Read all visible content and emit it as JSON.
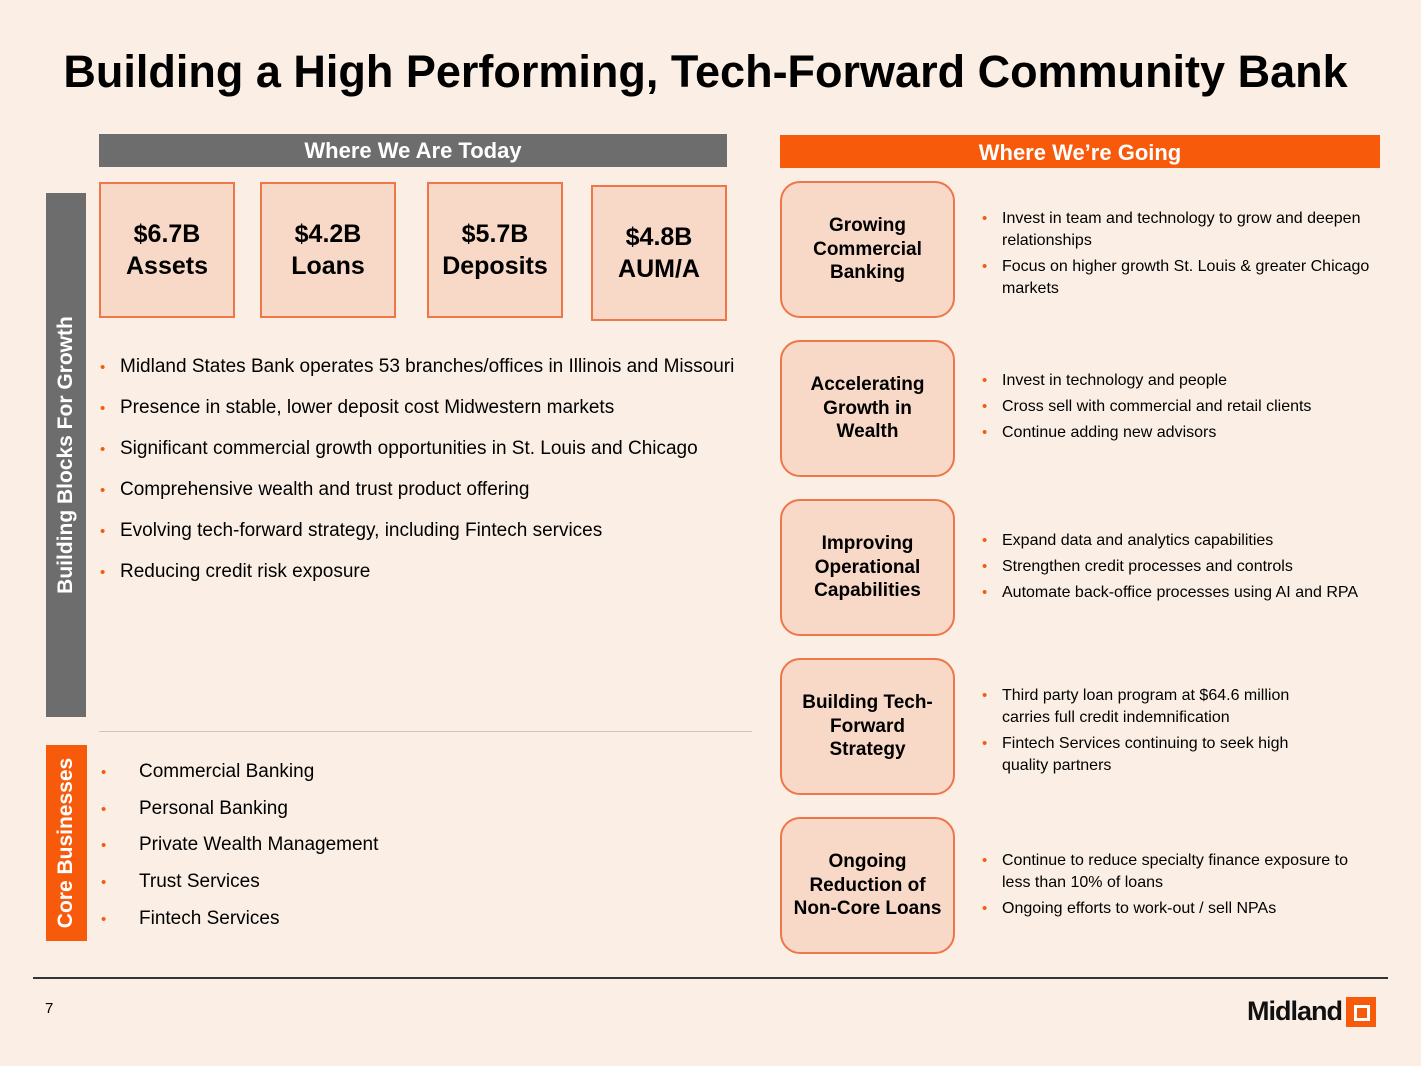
{
  "title": "Building a High Performing, Tech-Forward Community Bank",
  "today": {
    "header": "Where We Are Today",
    "stats": [
      {
        "value": "$6.7B",
        "label": "Assets"
      },
      {
        "value": "$4.2B",
        "label": "Loans"
      },
      {
        "value": "$5.7B",
        "label": "Deposits"
      },
      {
        "value": "$4.8B",
        "label": "AUM/A"
      }
    ],
    "side_label": "Building Blocks For Growth",
    "bullets": [
      "Midland States Bank operates 53 branches/offices in Illinois and Missouri",
      "Presence in stable, lower deposit cost Midwestern markets",
      "Significant commercial growth opportunities in St. Louis and Chicago",
      "Comprehensive wealth and trust product offering",
      "Evolving tech-forward strategy, including Fintech services",
      "Reducing credit risk exposure"
    ]
  },
  "core": {
    "side_label": "Core Businesses",
    "items": [
      "Commercial Banking",
      "Personal Banking",
      "Private Wealth Management",
      "Trust Services",
      "Fintech Services"
    ]
  },
  "going": {
    "header": "Where We’re Going",
    "rows": [
      {
        "title": "Growing Commercial Banking",
        "bullets": [
          "Invest in team and technology to grow and deepen relationships",
          "Focus on higher growth St. Louis & greater Chicago markets"
        ]
      },
      {
        "title": "Accelerating Growth in Wealth",
        "bullets": [
          "Invest in technology and people",
          "Cross sell with commercial and retail clients",
          "Continue adding new advisors"
        ]
      },
      {
        "title": "Improving Operational Capabilities",
        "bullets": [
          "Expand data and analytics capabilities",
          "Strengthen credit processes and controls",
          "Automate back-office processes using AI and RPA"
        ]
      },
      {
        "title": "Building Tech-Forward Strategy",
        "bullets": [
          "Third party loan program at $64.6 million carries full credit indemnification",
          "Fintech Services continuing to seek high quality partners"
        ]
      },
      {
        "title": "Ongoing Reduction of Non-Core Loans",
        "bullets": [
          "Continue to reduce specialty finance exposure to less than 10% of loans",
          "Ongoing efforts to work-out / sell NPAs"
        ]
      }
    ]
  },
  "footer": {
    "page_number": "7",
    "logo_text": "Midland",
    "logo_icon": "midland-square-logo-icon"
  }
}
